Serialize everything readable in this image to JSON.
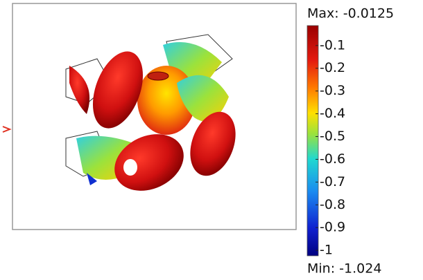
{
  "colorbar": {
    "max_label": "Max: -0.0125",
    "min_label": "Min: -1.024",
    "range": [
      -1.024,
      -0.0125
    ],
    "ticks": [
      -0.1,
      -0.2,
      -0.3,
      -0.4,
      -0.5,
      -0.6,
      -0.7,
      -0.8,
      -0.9,
      -1
    ]
  }
}
